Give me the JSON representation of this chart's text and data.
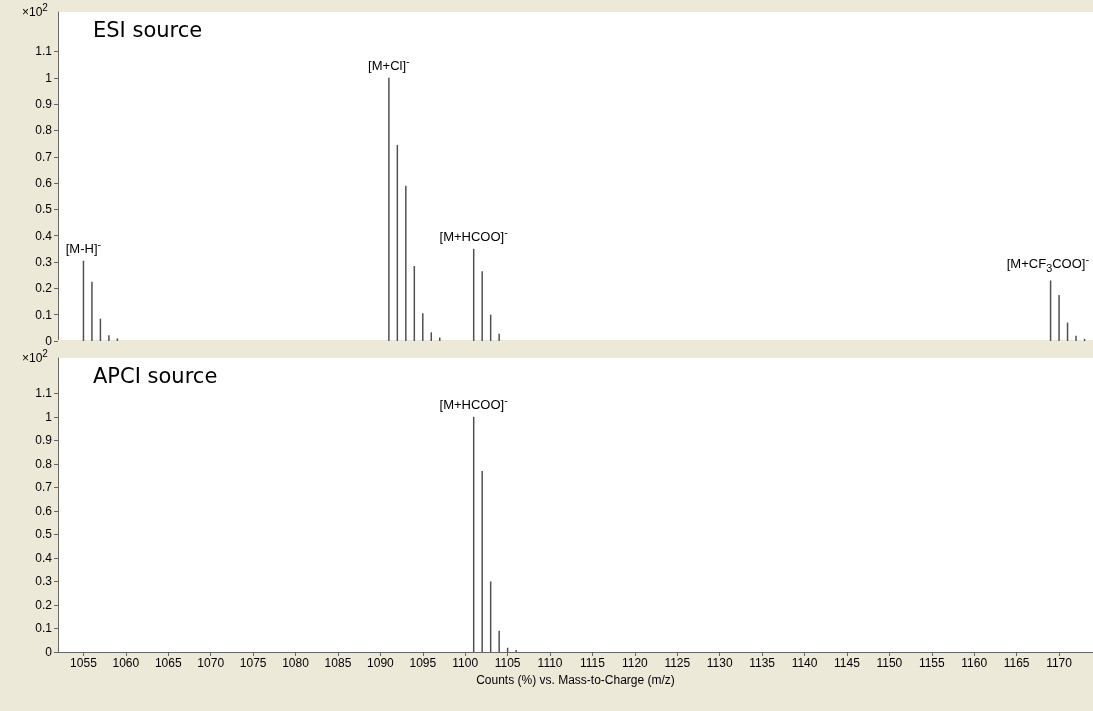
{
  "chart_data": [
    {
      "type": "bar",
      "title": "ESI source",
      "ylabel": "×10$^{2}$",
      "color": "#505050",
      "x": [
        1055,
        1056,
        1057,
        1058,
        1059,
        1091,
        1092,
        1093,
        1094,
        1095,
        1096,
        1097,
        1101,
        1102,
        1103,
        1104,
        1169,
        1170,
        1171,
        1172,
        1173
      ],
      "values": [
        0.305,
        0.225,
        0.085,
        0.022,
        0.01,
        1.0,
        0.745,
        0.59,
        0.285,
        0.105,
        0.033,
        0.013,
        0.35,
        0.265,
        0.1,
        0.028,
        0.23,
        0.175,
        0.07,
        0.02,
        0.008
      ],
      "xlim": [
        1052,
        1174
      ],
      "xticks": [
        1055,
        1060,
        1065,
        1070,
        1075,
        1080,
        1085,
        1090,
        1095,
        1100,
        1105,
        1110,
        1115,
        1120,
        1125,
        1130,
        1135,
        1140,
        1145,
        1150,
        1155,
        1160,
        1165,
        1170
      ],
      "ylim": [
        0,
        1.25
      ],
      "yticks": [
        0,
        0.1,
        0.2,
        0.3,
        0.4,
        0.5,
        0.6,
        0.7,
        0.8,
        0.9,
        1,
        1.1
      ],
      "tick_labels": "y",
      "annotations": [
        {
          "text": "[M-H]$^{-}$",
          "x": 1055,
          "y": 0.305
        },
        {
          "text": "[M+Cl]$^{-}$",
          "x": 1091,
          "y": 1.0
        },
        {
          "text": "[M+HCOO]$^{-}$",
          "x": 1101,
          "y": 0.35
        },
        {
          "text": "[M+CF$_{3}$COO]$^{-}$",
          "x": 1169,
          "y": 0.23
        }
      ]
    },
    {
      "type": "bar",
      "title": "APCI source",
      "ylabel": "×10$^{2}$",
      "xlabel": "Counts (%) vs. Mass-to-Charge (m/z)",
      "color": "#505050",
      "x": [
        1101,
        1102,
        1103,
        1104,
        1105,
        1106
      ],
      "values": [
        1.0,
        0.77,
        0.3,
        0.09,
        0.018,
        0.008
      ],
      "xlim": [
        1052,
        1174
      ],
      "xticks": [
        1055,
        1060,
        1065,
        1070,
        1075,
        1080,
        1085,
        1090,
        1095,
        1100,
        1105,
        1110,
        1115,
        1120,
        1125,
        1130,
        1135,
        1140,
        1145,
        1150,
        1155,
        1160,
        1165,
        1170
      ],
      "ylim": [
        0,
        1.25
      ],
      "yticks": [
        0,
        0.1,
        0.2,
        0.3,
        0.4,
        0.5,
        0.6,
        0.7,
        0.8,
        0.9,
        1,
        1.1
      ],
      "annotations": [
        {
          "text": "[M+HCOO]$^{-}$",
          "x": 1101,
          "y": 1.0
        }
      ]
    }
  ]
}
